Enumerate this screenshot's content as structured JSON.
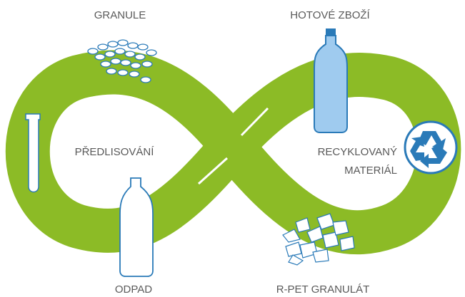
{
  "nodes": [
    {
      "label": "GRANULE"
    },
    {
      "label": "HOTOVÉ ZBOŽÍ"
    },
    {
      "label": "PŘEDLISOVÁNÍ"
    },
    {
      "lines": [
        "RECYKLOVANÝ",
        "MATERIÁL"
      ]
    },
    {
      "label": "ODPAD"
    },
    {
      "label": "R-PET GRANULÁT"
    }
  ]
}
